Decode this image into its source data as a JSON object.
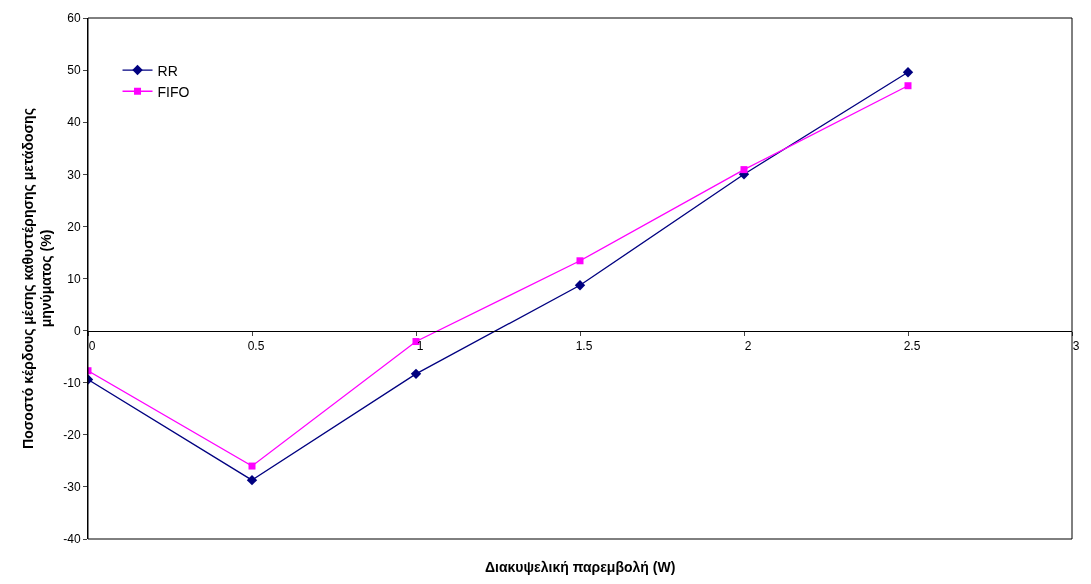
{
  "chart_data": {
    "type": "line",
    "xlabel": "Διακυψελική παρεμβολή (W)",
    "ylabel": "Ποσοστό κέρδους μέσης καθυστέρησης μετάδοσης μηνύματος (%)",
    "x": [
      0,
      0.5,
      1,
      1.5,
      2,
      2.5
    ],
    "series": [
      {
        "name": "RR",
        "color": "#000080",
        "marker": "diamond",
        "values": [
          -9.4,
          -28.7,
          -8.3,
          8.7,
          30,
          49.6
        ]
      },
      {
        "name": "FIFO",
        "color": "#ff00ff",
        "marker": "square",
        "values": [
          -7.7,
          -26,
          -2.1,
          13.4,
          30.9,
          47
        ]
      }
    ],
    "xlim": [
      0,
      3
    ],
    "xticks": [
      0,
      0.5,
      1,
      1.5,
      2,
      2.5,
      3
    ],
    "ylim": [
      -40,
      60
    ],
    "yticks": [
      -40,
      -30,
      -20,
      -10,
      0,
      10,
      20,
      30,
      40,
      50,
      60
    ],
    "grid": false,
    "legend": "top left",
    "line_style": "solid"
  }
}
